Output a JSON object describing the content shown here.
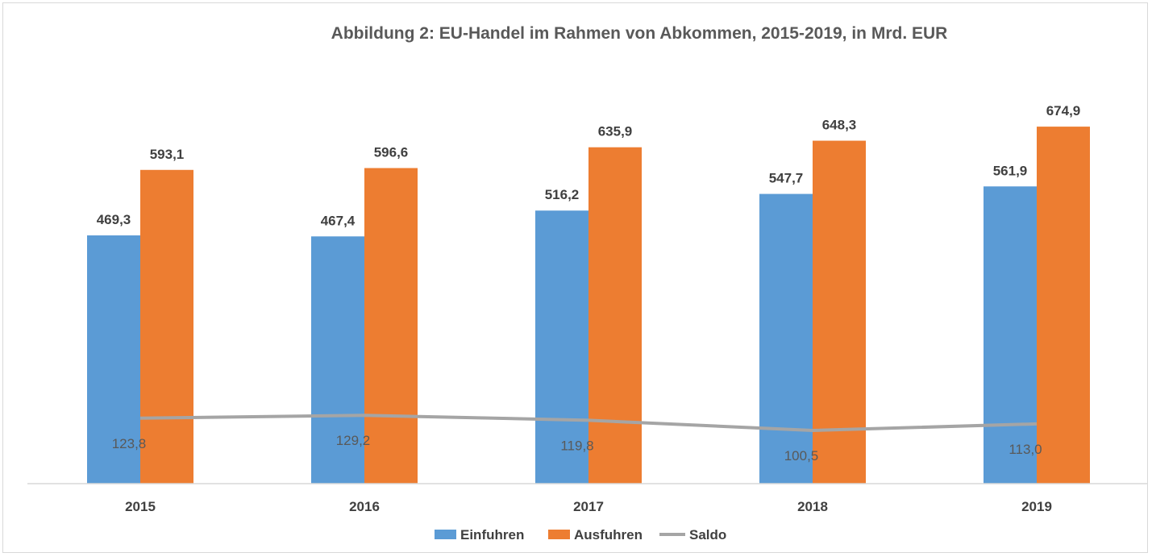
{
  "chart_data": {
    "type": "bar",
    "title": "Abbildung 2: EU-Handel im Rahmen von Abkommen, 2015-2019, in Mrd. EUR",
    "categories": [
      "2015",
      "2016",
      "2017",
      "2018",
      "2019"
    ],
    "series": [
      {
        "name": "Einfuhren",
        "type": "bar",
        "color": "#5B9BD5",
        "values": [
          469.3,
          467.4,
          516.2,
          547.7,
          561.9
        ],
        "labels": [
          "469,3",
          "467,4",
          "516,2",
          "547,7",
          "561,9"
        ]
      },
      {
        "name": "Ausfuhren",
        "type": "bar",
        "color": "#ED7D31",
        "values": [
          593.1,
          596.6,
          635.9,
          648.3,
          674.9
        ],
        "labels": [
          "593,1",
          "596,6",
          "635,9",
          "648,3",
          "674,9"
        ]
      },
      {
        "name": "Saldo",
        "type": "line",
        "color": "#A5A5A5",
        "values": [
          123.8,
          129.2,
          119.8,
          100.5,
          113.0
        ],
        "labels": [
          "123,8",
          "129,2",
          "119,8",
          "100,5",
          "113,0"
        ]
      }
    ],
    "ylim": [
      0,
      800
    ],
    "grid": false,
    "legend_position": "bottom"
  }
}
